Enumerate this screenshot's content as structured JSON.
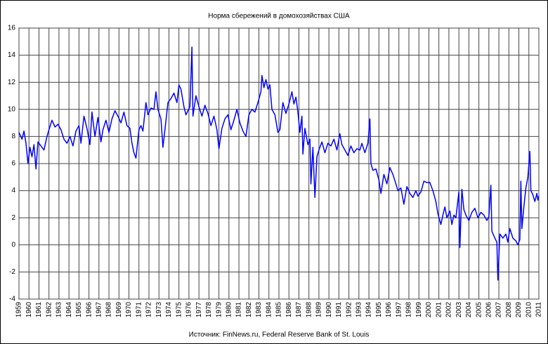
{
  "chart_data": {
    "type": "line",
    "title": "Норма сбережений в домохозяйствах США",
    "source": "Источник: FinNews.ru, Federal Reserve Bank of St. Louis",
    "color": "#0000ff",
    "grid": true,
    "xlim": [
      1959,
      2011
    ],
    "ylim": [
      -4,
      16
    ],
    "yticks": [
      -4,
      -2,
      0,
      2,
      4,
      6,
      8,
      10,
      12,
      14,
      16
    ],
    "xticks": [
      1959,
      1960,
      1961,
      1962,
      1963,
      1964,
      1965,
      1966,
      1967,
      1968,
      1969,
      1970,
      1971,
      1972,
      1973,
      1974,
      1975,
      1976,
      1977,
      1978,
      1979,
      1980,
      1981,
      1982,
      1983,
      1984,
      1985,
      1986,
      1987,
      1988,
      1989,
      1990,
      1991,
      1992,
      1993,
      1994,
      1995,
      1996,
      1997,
      1998,
      1999,
      2000,
      2001,
      2002,
      2003,
      2004,
      2005,
      2006,
      2007,
      2008,
      2009,
      2010,
      2011
    ],
    "x": [
      1959.0,
      1959.3,
      1959.5,
      1959.7,
      1959.9,
      1960.1,
      1960.3,
      1960.5,
      1960.7,
      1960.9,
      1961.2,
      1961.5,
      1961.8,
      1962.0,
      1962.3,
      1962.6,
      1962.9,
      1963.2,
      1963.5,
      1963.8,
      1964.1,
      1964.4,
      1964.7,
      1965.0,
      1965.2,
      1965.5,
      1965.8,
      1966.1,
      1966.3,
      1966.6,
      1966.9,
      1967.2,
      1967.4,
      1967.7,
      1968.0,
      1968.3,
      1968.6,
      1968.9,
      1969.2,
      1969.5,
      1969.8,
      1970.1,
      1970.3,
      1970.5,
      1970.7,
      1971.0,
      1971.2,
      1971.4,
      1971.7,
      1971.9,
      1972.2,
      1972.5,
      1972.7,
      1972.9,
      1973.2,
      1973.4,
      1973.6,
      1973.9,
      1974.2,
      1974.5,
      1974.8,
      1975.0,
      1975.2,
      1975.5,
      1975.7,
      1976.1,
      1976.3,
      1976.4,
      1976.7,
      1977.0,
      1977.3,
      1977.6,
      1977.9,
      1978.2,
      1978.5,
      1978.8,
      1979.0,
      1979.3,
      1979.6,
      1979.9,
      1980.2,
      1980.5,
      1980.8,
      1981.1,
      1981.4,
      1981.7,
      1982.0,
      1982.3,
      1982.6,
      1982.9,
      1983.2,
      1983.3,
      1983.5,
      1983.7,
      1983.9,
      1984.1,
      1984.3,
      1984.6,
      1984.9,
      1985.1,
      1985.4,
      1985.7,
      1986.0,
      1986.3,
      1986.5,
      1986.7,
      1986.9,
      1987.1,
      1987.3,
      1987.4,
      1987.6,
      1987.9,
      1988.1,
      1988.2,
      1988.4,
      1988.6,
      1988.8,
      1989.0,
      1989.3,
      1989.6,
      1989.9,
      1990.2,
      1990.5,
      1990.8,
      1991.1,
      1991.3,
      1991.6,
      1991.9,
      1992.2,
      1992.5,
      1992.8,
      1993.1,
      1993.3,
      1993.6,
      1993.9,
      1994.1,
      1994.2,
      1994.4,
      1994.7,
      1995.0,
      1995.2,
      1995.5,
      1995.8,
      1996.1,
      1996.4,
      1996.7,
      1996.9,
      1997.2,
      1997.5,
      1997.8,
      1998.1,
      1998.4,
      1998.7,
      1998.9,
      1999.2,
      1999.5,
      1999.8,
      2000.1,
      2000.4,
      2000.7,
      2000.9,
      2001.2,
      2001.4,
      2001.6,
      2001.8,
      2002.1,
      2002.3,
      2002.5,
      2002.7,
      2003.0,
      2003.1,
      2003.3,
      2003.5,
      2003.7,
      2004.0,
      2004.3,
      2004.6,
      2004.9,
      2005.2,
      2005.5,
      2005.8,
      2006.0,
      2006.2,
      2006.3,
      2006.6,
      2006.8,
      2006.9,
      2007.1,
      2007.4,
      2007.7,
      2007.9,
      2008.1,
      2008.4,
      2008.7,
      2008.9,
      2009.1,
      2009.2,
      2009.3,
      2009.5,
      2009.7,
      2009.9,
      2010.1,
      2010.2,
      2010.4,
      2010.6,
      2010.8,
      2010.9,
      2011.0
    ],
    "values": [
      8.3,
      7.8,
      8.4,
      7.5,
      6.0,
      7.2,
      6.5,
      7.4,
      5.6,
      7.6,
      7.3,
      7.0,
      8.0,
      8.5,
      9.2,
      8.7,
      8.9,
      8.5,
      7.8,
      7.5,
      8.0,
      7.3,
      8.4,
      8.8,
      7.5,
      9.5,
      8.6,
      7.4,
      9.8,
      8.0,
      9.4,
      7.6,
      8.5,
      9.2,
      8.3,
      9.3,
      9.9,
      9.5,
      9.0,
      9.8,
      8.8,
      8.6,
      7.5,
      6.8,
      6.4,
      8.5,
      8.8,
      8.4,
      10.5,
      9.6,
      10.1,
      10.0,
      11.3,
      10.0,
      9.3,
      7.2,
      8.5,
      10.5,
      10.8,
      11.2,
      10.5,
      11.8,
      11.5,
      10.2,
      9.6,
      10.2,
      14.6,
      9.5,
      11.0,
      10.2,
      9.5,
      10.3,
      9.7,
      8.8,
      9.5,
      8.5,
      7.1,
      8.6,
      9.3,
      9.6,
      8.5,
      9.2,
      10.0,
      9.0,
      8.4,
      8.0,
      9.6,
      10.0,
      9.8,
      10.5,
      11.3,
      12.5,
      11.6,
      12.2,
      11.5,
      11.8,
      10.0,
      9.6,
      8.3,
      8.5,
      10.5,
      9.7,
      10.4,
      11.3,
      10.4,
      10.9,
      9.8,
      8.3,
      9.5,
      6.7,
      8.6,
      7.4,
      7.8,
      4.5,
      7.2,
      3.5,
      6.5,
      7.0,
      7.6,
      6.8,
      7.5,
      7.3,
      7.8,
      7.0,
      8.2,
      7.4,
      7.0,
      6.6,
      7.3,
      6.8,
      7.1,
      7.0,
      7.5,
      6.8,
      7.5,
      9.3,
      6.0,
      5.5,
      5.6,
      4.8,
      3.8,
      5.2,
      4.5,
      5.7,
      5.2,
      4.5,
      4.0,
      4.2,
      3.0,
      4.3,
      3.8,
      3.5,
      4.0,
      3.6,
      3.9,
      4.7,
      4.6,
      4.6,
      4.0,
      3.2,
      2.3,
      1.5,
      2.2,
      2.8,
      2.0,
      2.5,
      1.5,
      2.2,
      2.0,
      3.9,
      -0.2,
      4.1,
      2.6,
      2.2,
      1.8,
      2.4,
      2.7,
      2.0,
      2.4,
      2.2,
      1.8,
      2.1,
      4.4,
      1.0,
      0.5,
      0.2,
      -2.6,
      0.8,
      0.5,
      0.8,
      0.2,
      1.2,
      0.5,
      0.3,
      0.0,
      0.4,
      4.7,
      1.2,
      2.8,
      4.2,
      5.0,
      6.9,
      4.0,
      3.7,
      3.2,
      3.8,
      3.3,
      3.6
    ]
  }
}
